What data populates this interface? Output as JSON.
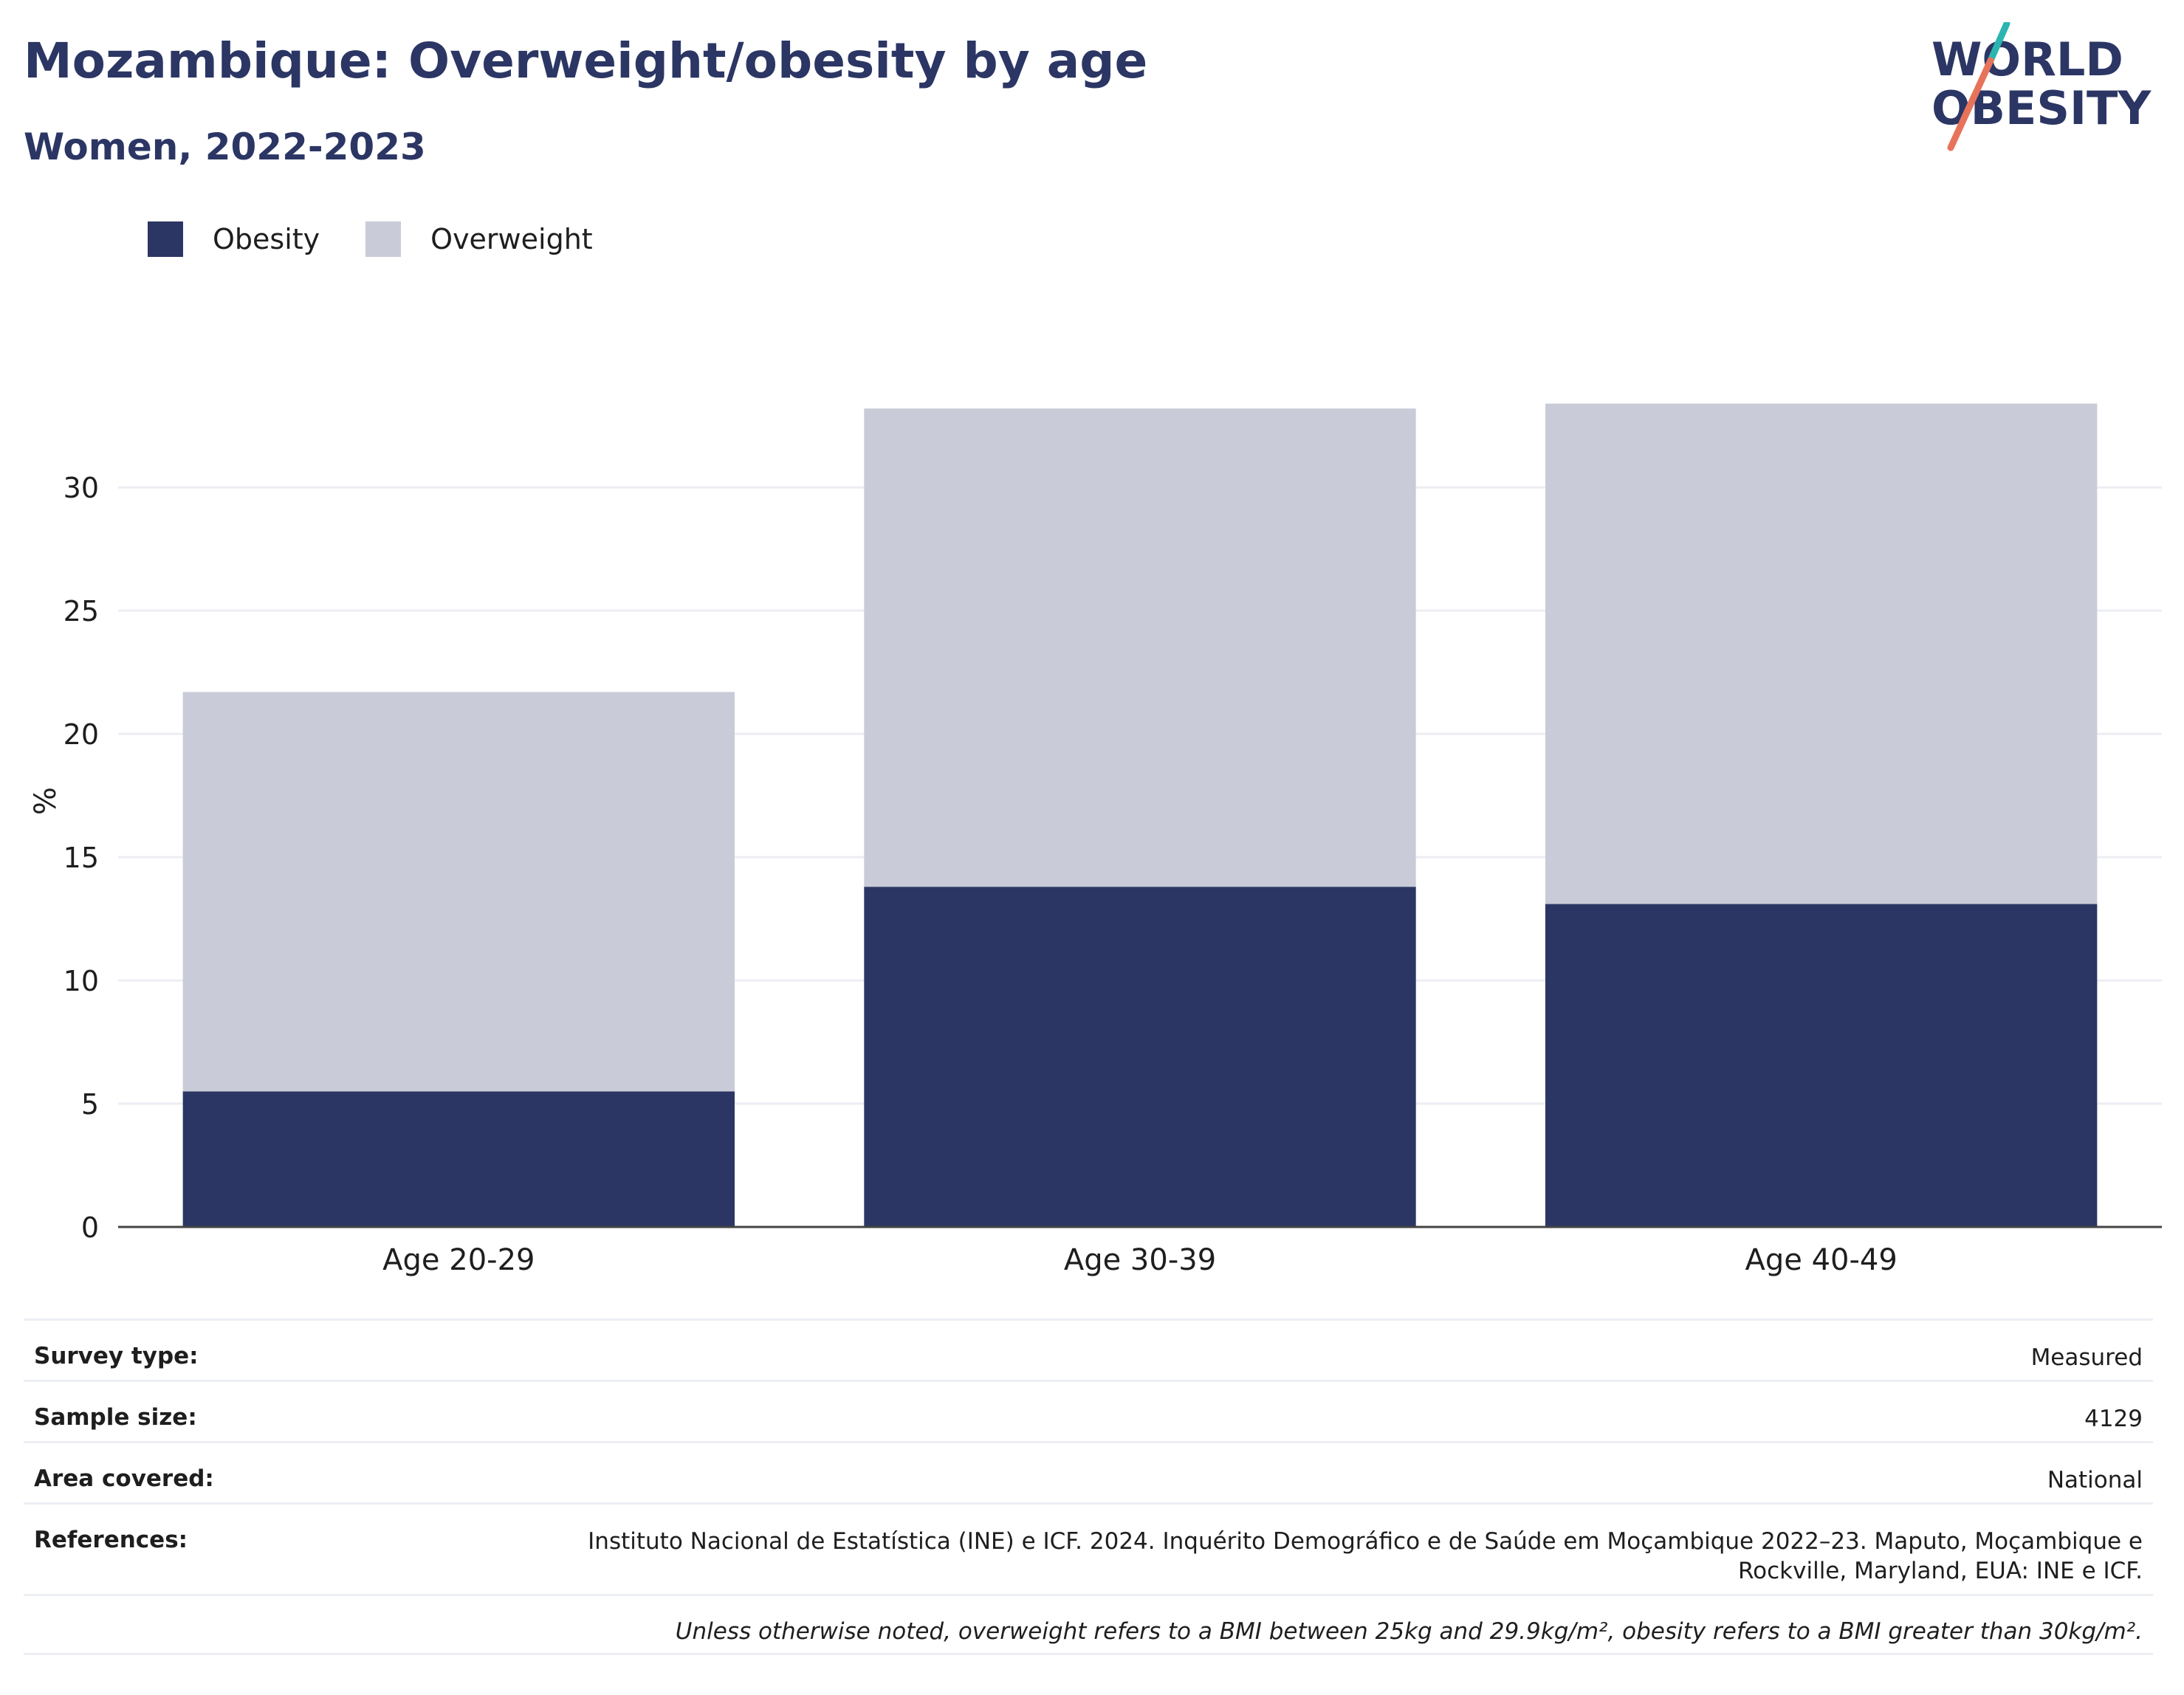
{
  "header": {
    "title": "Mozambique: Overweight/obesity by age",
    "subtitle": "Women, 2022-2023"
  },
  "logo": {
    "line1": "WORLD",
    "line2": "OBESITY",
    "accent_teal": "#2bb5b0",
    "accent_coral": "#e8735b",
    "color": "#2b3664"
  },
  "legend": [
    {
      "label": "Obesity",
      "color": "#2b3664"
    },
    {
      "label": "Overweight",
      "color": "#c9ccd8"
    }
  ],
  "chart_data": {
    "type": "bar",
    "stacked": true,
    "categories": [
      "Age 20-29",
      "Age 30-39",
      "Age 40-49"
    ],
    "series": [
      {
        "name": "Obesity",
        "values": [
          5.5,
          13.8,
          13.1
        ],
        "color": "#2b3664"
      },
      {
        "name": "Overweight",
        "values": [
          16.2,
          19.4,
          20.3
        ],
        "color": "#c9ccd8"
      }
    ],
    "ylabel": "%",
    "xlabel": "",
    "ylim": [
      0,
      33.3
    ],
    "yticks": [
      0,
      5,
      10,
      15,
      20,
      25,
      30
    ],
    "grid": true,
    "legend_position": "top-left"
  },
  "meta": {
    "survey_type": {
      "label": "Survey type:",
      "value": "Measured"
    },
    "sample_size": {
      "label": "Sample size:",
      "value": "4129"
    },
    "area_covered": {
      "label": "Area covered:",
      "value": "National"
    },
    "references": {
      "label": "References:",
      "value_line1": "Instituto Nacional de Estatística (INE) e ICF. 2024. Inquérito Demográfico e de Saúde em Moçambique 2022–23. Maputo, Moçambique e",
      "value_line2": "Rockville, Maryland, EUA: INE e ICF."
    },
    "note": "Unless otherwise noted, overweight refers to a BMI between 25kg and 29.9kg/m², obesity refers to a BMI greater than 30kg/m²."
  }
}
